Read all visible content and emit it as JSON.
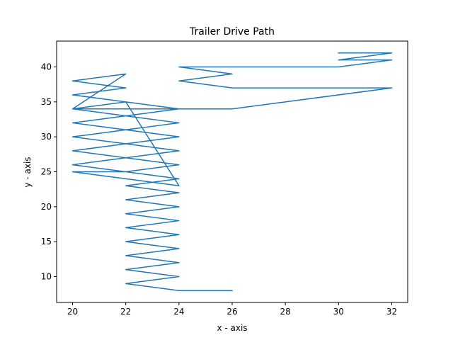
{
  "chart_data": {
    "type": "line",
    "title": "Trailer Drive Path",
    "xlabel": "x - axis",
    "ylabel": "y - axis",
    "xlim": [
      19.4,
      32.6
    ],
    "ylim": [
      6.3,
      43.7
    ],
    "xticks": [
      20,
      22,
      24,
      26,
      28,
      30,
      32
    ],
    "yticks": [
      10,
      15,
      20,
      25,
      30,
      35,
      40
    ],
    "grid": false,
    "series": [
      {
        "color": "#1f77b4",
        "x": [
          26,
          24,
          22,
          24,
          22,
          24,
          22,
          24,
          22,
          24,
          22,
          24,
          22,
          24,
          22,
          24,
          22,
          24,
          22,
          24,
          22,
          24,
          22,
          24,
          22,
          24,
          22,
          24,
          22,
          24,
          20,
          22,
          20,
          22,
          20,
          22,
          20,
          22,
          20,
          22,
          20,
          22,
          20,
          22,
          20,
          22,
          20,
          26,
          32,
          26,
          24,
          26,
          24,
          26,
          24,
          30,
          32,
          30,
          32,
          30
        ],
        "y": [
          8,
          8,
          9,
          10,
          11,
          12,
          13,
          14,
          15,
          16,
          17,
          18,
          19,
          20,
          21,
          22,
          23,
          24,
          25,
          26,
          27,
          28,
          29,
          30,
          31,
          32,
          33,
          34,
          35,
          23,
          25,
          25,
          26,
          27,
          28,
          29,
          30,
          31,
          32,
          33,
          34,
          35,
          36,
          37,
          38,
          39,
          34,
          34,
          37,
          37,
          38,
          39,
          40,
          40,
          40,
          40,
          41,
          41,
          42,
          42
        ]
      }
    ]
  }
}
